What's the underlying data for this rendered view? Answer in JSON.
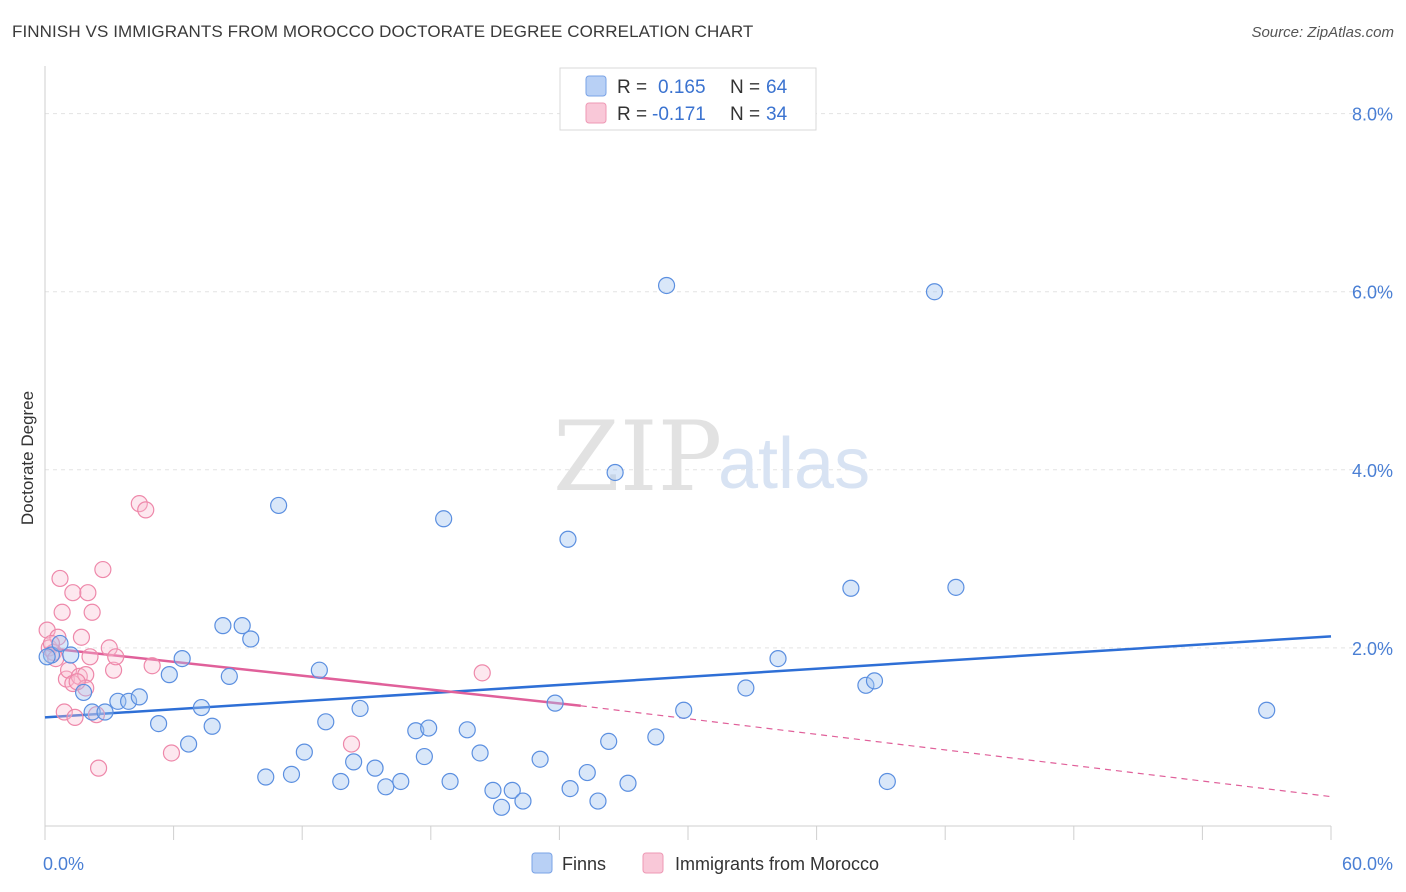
{
  "header": {
    "title": "FINNISH VS IMMIGRANTS FROM MOROCCO DOCTORATE DEGREE CORRELATION CHART",
    "source": "Source: ZipAtlas.com"
  },
  "watermark": {
    "zip": "ZIP",
    "atlas": "atlas"
  },
  "legend": {
    "r_label": "R =",
    "n_label": "N =",
    "series": [
      {
        "r": "0.165",
        "n": "64"
      },
      {
        "r": "-0.171",
        "n": "34"
      }
    ]
  },
  "chart_data": {
    "type": "scatter",
    "title": "FINNISH VS IMMIGRANTS FROM MOROCCO DOCTORATE DEGREE CORRELATION CHART",
    "xlabel": "",
    "ylabel": "Doctorate Degree",
    "xlim": [
      0,
      60
    ],
    "ylim": [
      0,
      8.4
    ],
    "x_tick_labels": [
      {
        "value": 0,
        "label": "0.0%"
      },
      {
        "value": 60,
        "label": "60.0%"
      }
    ],
    "y_tick_labels": [
      {
        "value": 2,
        "label": "2.0%"
      },
      {
        "value": 4,
        "label": "4.0%"
      },
      {
        "value": 6,
        "label": "6.0%"
      },
      {
        "value": 8,
        "label": "8.0%"
      }
    ],
    "colors": {
      "finns": "#5b8fe0",
      "morocco": "#ee88aa",
      "finns_line": "#2e6fd6",
      "morocco_line": "#e0609a"
    },
    "series": [
      {
        "name": "Finns",
        "points": [
          [
            0.3,
            1.92
          ],
          [
            0.7,
            2.05
          ],
          [
            1.2,
            1.92
          ],
          [
            1.8,
            1.5
          ],
          [
            2.2,
            1.28
          ],
          [
            2.8,
            1.28
          ],
          [
            3.4,
            1.4
          ],
          [
            3.9,
            1.4
          ],
          [
            4.4,
            1.45
          ],
          [
            5.3,
            1.15
          ],
          [
            5.8,
            1.7
          ],
          [
            6.4,
            1.88
          ],
          [
            6.7,
            0.92
          ],
          [
            7.3,
            1.33
          ],
          [
            7.8,
            1.12
          ],
          [
            8.3,
            2.25
          ],
          [
            8.6,
            1.68
          ],
          [
            9.2,
            2.25
          ],
          [
            9.6,
            2.1
          ],
          [
            10.3,
            0.55
          ],
          [
            10.9,
            3.6
          ],
          [
            11.5,
            0.58
          ],
          [
            12.1,
            0.83
          ],
          [
            12.8,
            1.75
          ],
          [
            13.1,
            1.17
          ],
          [
            13.8,
            0.5
          ],
          [
            14.4,
            0.72
          ],
          [
            14.7,
            1.32
          ],
          [
            15.4,
            0.65
          ],
          [
            15.9,
            0.44
          ],
          [
            16.6,
            0.5
          ],
          [
            17.3,
            1.07
          ],
          [
            17.9,
            1.1
          ],
          [
            17.7,
            0.78
          ],
          [
            18.6,
            3.45
          ],
          [
            18.9,
            0.5
          ],
          [
            19.7,
            1.08
          ],
          [
            20.3,
            0.82
          ],
          [
            20.9,
            0.4
          ],
          [
            21.3,
            0.21
          ],
          [
            21.8,
            0.4
          ],
          [
            22.3,
            0.28
          ],
          [
            23.1,
            0.75
          ],
          [
            23.8,
            1.38
          ],
          [
            24.4,
            3.22
          ],
          [
            24.5,
            0.42
          ],
          [
            25.3,
            0.6
          ],
          [
            25.8,
            0.28
          ],
          [
            26.3,
            0.95
          ],
          [
            26.6,
            3.97
          ],
          [
            27.2,
            0.48
          ],
          [
            28.5,
            1.0
          ],
          [
            29.0,
            6.07
          ],
          [
            29.8,
            1.3
          ],
          [
            32.7,
            1.55
          ],
          [
            34.2,
            1.88
          ],
          [
            37.6,
            2.67
          ],
          [
            38.3,
            1.58
          ],
          [
            38.7,
            1.63
          ],
          [
            39.3,
            0.5
          ],
          [
            41.5,
            6.0
          ],
          [
            42.5,
            2.68
          ],
          [
            57.0,
            1.3
          ],
          [
            0.1,
            1.9
          ]
        ]
      },
      {
        "name": "Immigrants from Morocco",
        "points": [
          [
            0.1,
            2.2
          ],
          [
            0.2,
            2.0
          ],
          [
            0.4,
            1.95
          ],
          [
            0.5,
            1.88
          ],
          [
            0.6,
            2.12
          ],
          [
            0.7,
            2.78
          ],
          [
            0.8,
            2.4
          ],
          [
            0.9,
            1.28
          ],
          [
            1.0,
            1.65
          ],
          [
            1.1,
            1.75
          ],
          [
            1.3,
            1.6
          ],
          [
            1.3,
            2.62
          ],
          [
            1.4,
            1.22
          ],
          [
            1.6,
            1.68
          ],
          [
            1.7,
            2.12
          ],
          [
            1.9,
            1.7
          ],
          [
            1.9,
            1.55
          ],
          [
            2.0,
            2.62
          ],
          [
            2.1,
            1.9
          ],
          [
            2.2,
            2.4
          ],
          [
            2.4,
            1.25
          ],
          [
            2.5,
            0.65
          ],
          [
            2.7,
            2.88
          ],
          [
            3.0,
            2.0
          ],
          [
            3.2,
            1.75
          ],
          [
            3.3,
            1.9
          ],
          [
            4.4,
            3.62
          ],
          [
            4.7,
            3.55
          ],
          [
            5.0,
            1.8
          ],
          [
            5.9,
            0.82
          ],
          [
            14.3,
            0.92
          ],
          [
            20.4,
            1.72
          ],
          [
            0.3,
            2.05
          ],
          [
            1.5,
            1.62
          ]
        ]
      }
    ],
    "trend_lines": [
      {
        "series": "Finns",
        "x": [
          0,
          60
        ],
        "y": [
          1.22,
          2.13
        ]
      },
      {
        "series": "Immigrants from Morocco",
        "solid_x": [
          0,
          25
        ],
        "solid_y": [
          2.0,
          1.35
        ],
        "dashed_x": [
          25,
          60
        ],
        "dashed_y": [
          1.35,
          0.33
        ]
      }
    ]
  }
}
